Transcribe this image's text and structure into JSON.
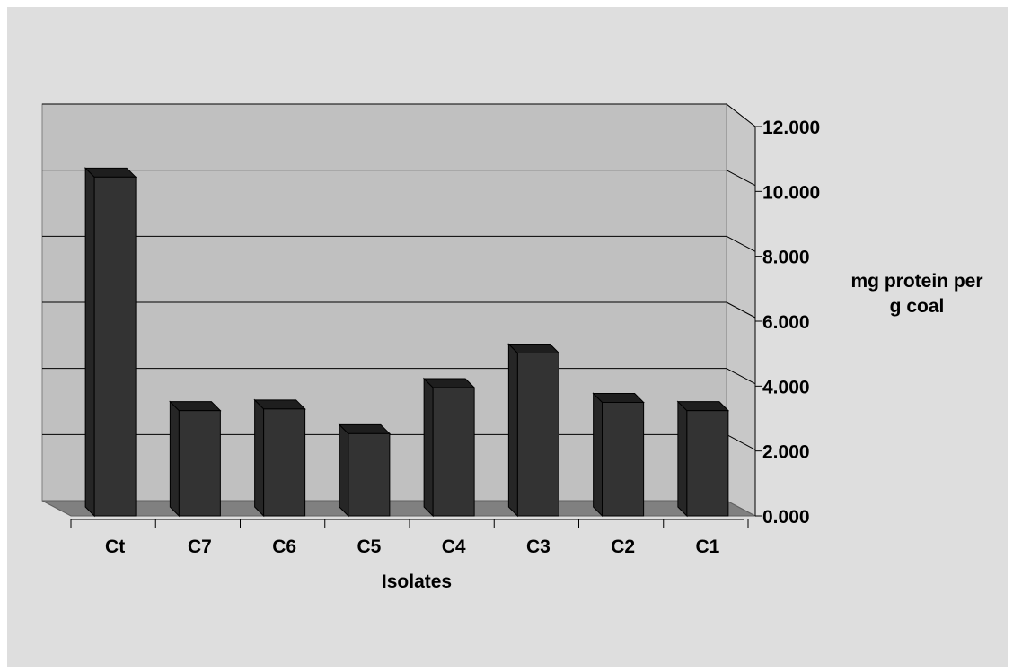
{
  "chart_data": {
    "type": "bar",
    "title": "",
    "xlabel": "Isolates",
    "ylabel_lines": [
      "mg protein per",
      "g coal"
    ],
    "categories": [
      "Ct",
      "C7",
      "C6",
      "C5",
      "C4",
      "C3",
      "C2",
      "C1"
    ],
    "series": [
      {
        "values": [
          10.3,
          3.2,
          3.25,
          2.5,
          3.9,
          4.95,
          3.45,
          3.2
        ]
      }
    ],
    "ylim": [
      0,
      12
    ],
    "yticks": [
      "0.000",
      "2.000",
      "4.000",
      "6.000",
      "8.000",
      "10.000",
      "12.000"
    ],
    "ytick_values": [
      0,
      2,
      4,
      6,
      8,
      10,
      12
    ],
    "y_axis_side": "right",
    "grid": true,
    "legend": "none",
    "style": "3d-column",
    "colors": {
      "background": "#dedede",
      "back_wall": "#c0c0c0",
      "side_wall": "#c8c8c8",
      "floor": "#808080",
      "bar_front": "#333333",
      "bar_side": "#262626",
      "bar_top": "#1e1e1e",
      "gridline": "#000000"
    }
  }
}
